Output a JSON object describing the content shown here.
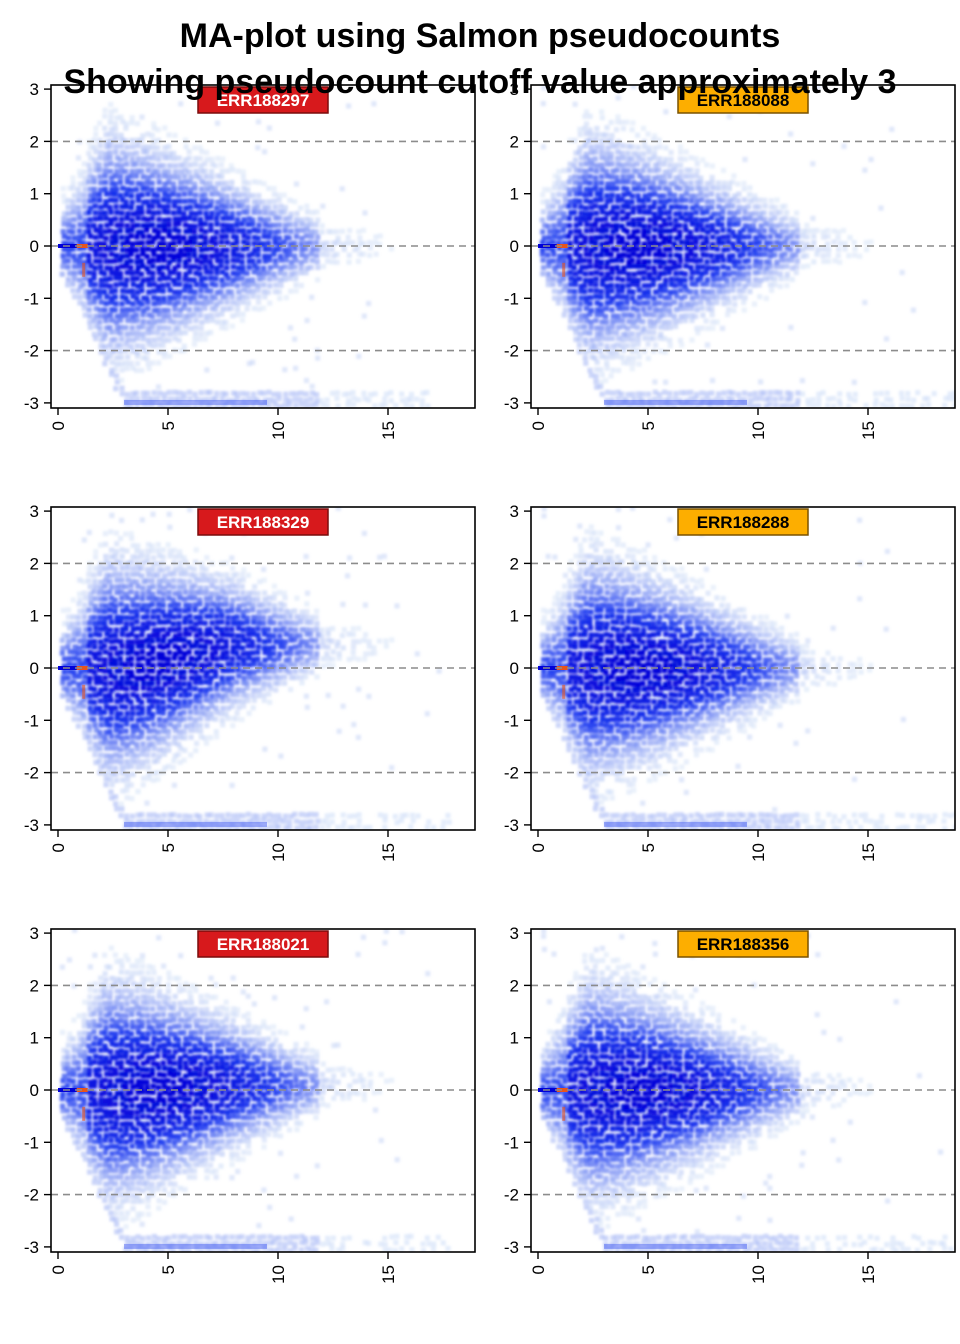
{
  "title": [
    "MA-plot using Salmon pseudocounts",
    "Showing pseudocount cutoff value approximately 3"
  ],
  "colors": {
    "density_low": "#dcecf6",
    "density_mid": "#1f3cf0",
    "density_high": "#0000d8",
    "cutoff_point": "#e8541a",
    "reference_line": "#8c8c8c",
    "group_a_fill": "#d7191c",
    "group_a_text": "#ffffff",
    "group_b_fill": "#fdae00",
    "group_b_text": "#000000"
  },
  "chart_data": [
    {
      "type": "heatmap",
      "sample": "ERR188297",
      "group": "a",
      "xlim": [
        0,
        19
      ],
      "ylim": [
        -3,
        3
      ],
      "xticks": [
        "0",
        "5",
        "10",
        "15"
      ],
      "yticks": [
        "-3",
        "-2",
        "-1",
        "0",
        "1",
        "2",
        "3"
      ],
      "reference_lines": [
        -2,
        0,
        2
      ],
      "tail_x_max": 17,
      "center_offset": 0.0
    },
    {
      "type": "heatmap",
      "sample": "ERR188088",
      "group": "b",
      "xlim": [
        0,
        19
      ],
      "ylim": [
        -3,
        3
      ],
      "xticks": [
        "0",
        "5",
        "10",
        "15"
      ],
      "yticks": [
        "-3",
        "-2",
        "-1",
        "0",
        "1",
        "2",
        "3"
      ],
      "reference_lines": [
        -2,
        0,
        2
      ],
      "tail_x_max": 19,
      "center_offset": 0.0
    },
    {
      "type": "heatmap",
      "sample": "ERR188329",
      "group": "a",
      "xlim": [
        0,
        19
      ],
      "ylim": [
        -3,
        3
      ],
      "xticks": [
        "0",
        "5",
        "10",
        "15"
      ],
      "yticks": [
        "-3",
        "-2",
        "-1",
        "0",
        "1",
        "2",
        "3"
      ],
      "reference_lines": [
        -2,
        0,
        2
      ],
      "tail_x_max": 18,
      "center_offset": 0.45
    },
    {
      "type": "heatmap",
      "sample": "ERR188288",
      "group": "b",
      "xlim": [
        0,
        19
      ],
      "ylim": [
        -3,
        3
      ],
      "xticks": [
        "0",
        "5",
        "10",
        "15"
      ],
      "yticks": [
        "-3",
        "-2",
        "-1",
        "0",
        "1",
        "2",
        "3"
      ],
      "reference_lines": [
        -2,
        0,
        2
      ],
      "tail_x_max": 19,
      "center_offset": 0.0
    },
    {
      "type": "heatmap",
      "sample": "ERR188021",
      "group": "a",
      "xlim": [
        0,
        19
      ],
      "ylim": [
        -3,
        3
      ],
      "xticks": [
        "0",
        "5",
        "10",
        "15"
      ],
      "yticks": [
        "-3",
        "-2",
        "-1",
        "0",
        "1",
        "2",
        "3"
      ],
      "reference_lines": [
        -2,
        0,
        2
      ],
      "tail_x_max": 18,
      "center_offset": 0.1
    },
    {
      "type": "heatmap",
      "sample": "ERR188356",
      "group": "b",
      "xlim": [
        0,
        19
      ],
      "ylim": [
        -3,
        3
      ],
      "xticks": [
        "0",
        "5",
        "10",
        "15"
      ],
      "yticks": [
        "-3",
        "-2",
        "-1",
        "0",
        "1",
        "2",
        "3"
      ],
      "reference_lines": [
        -2,
        0,
        2
      ],
      "tail_x_max": 19,
      "center_offset": 0.0
    }
  ]
}
